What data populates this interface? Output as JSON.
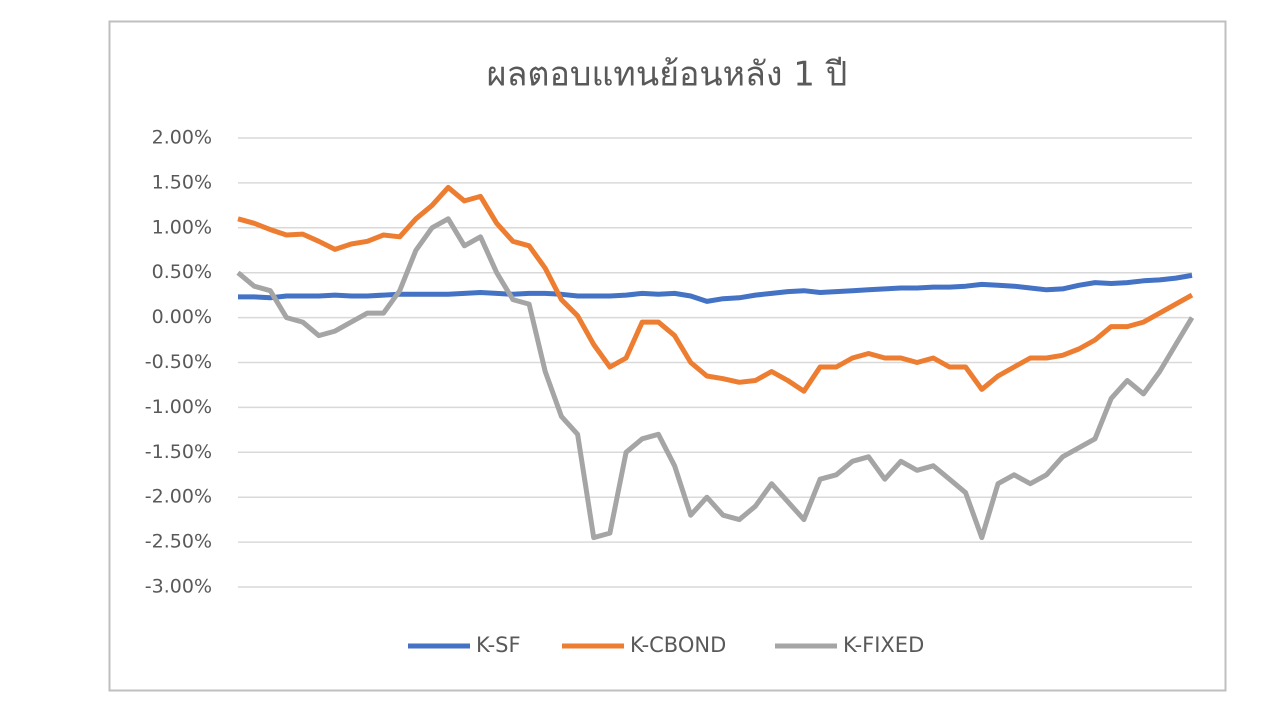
{
  "chart_data": {
    "type": "line",
    "title": "ผลตอบแทนย้อนหลัง 1 ปี",
    "ylim": [
      -3,
      2
    ],
    "yticks": [
      {
        "value": 2,
        "label": "2.00%"
      },
      {
        "value": 1.5,
        "label": "1.50%"
      },
      {
        "value": 1,
        "label": "1.00%"
      },
      {
        "value": 0.5,
        "label": "0.50%"
      },
      {
        "value": 0,
        "label": "0.00%"
      },
      {
        "value": -0.5,
        "label": "-0.50%"
      },
      {
        "value": -1,
        "label": "-1.00%"
      },
      {
        "value": -1.5,
        "label": "-1.50%"
      },
      {
        "value": -2,
        "label": "-2.00%"
      },
      {
        "value": -2.5,
        "label": "-2.50%"
      },
      {
        "value": -3,
        "label": "-3.00%"
      }
    ],
    "grid": true,
    "legend": "bottom",
    "series": [
      {
        "name": "K-SF",
        "color": "#4472c4",
        "values": [
          0.23,
          0.23,
          0.22,
          0.24,
          0.24,
          0.24,
          0.25,
          0.24,
          0.24,
          0.25,
          0.26,
          0.26,
          0.26,
          0.26,
          0.27,
          0.28,
          0.27,
          0.26,
          0.27,
          0.27,
          0.26,
          0.24,
          0.24,
          0.24,
          0.25,
          0.27,
          0.26,
          0.27,
          0.24,
          0.18,
          0.21,
          0.22,
          0.25,
          0.27,
          0.29,
          0.3,
          0.28,
          0.29,
          0.3,
          0.31,
          0.32,
          0.33,
          0.33,
          0.34,
          0.34,
          0.35,
          0.37,
          0.36,
          0.35,
          0.33,
          0.31,
          0.32,
          0.36,
          0.39,
          0.38,
          0.39,
          0.41,
          0.42,
          0.44,
          0.47
        ]
      },
      {
        "name": "K-CBOND",
        "color": "#ed7d31",
        "values": [
          1.1,
          1.05,
          0.98,
          0.92,
          0.93,
          0.85,
          0.76,
          0.82,
          0.85,
          0.92,
          0.9,
          1.1,
          1.25,
          1.45,
          1.3,
          1.35,
          1.05,
          0.85,
          0.8,
          0.55,
          0.2,
          0.02,
          -0.3,
          -0.55,
          -0.45,
          -0.05,
          -0.05,
          -0.2,
          -0.5,
          -0.65,
          -0.68,
          -0.72,
          -0.7,
          -0.6,
          -0.7,
          -0.82,
          -0.55,
          -0.55,
          -0.45,
          -0.4,
          -0.45,
          -0.45,
          -0.5,
          -0.45,
          -0.55,
          -0.55,
          -0.8,
          -0.65,
          -0.55,
          -0.45,
          -0.45,
          -0.42,
          -0.35,
          -0.25,
          -0.1,
          -0.1,
          -0.05,
          0.05,
          0.15,
          0.25
        ]
      },
      {
        "name": "K-FIXED",
        "color": "#a5a5a5",
        "values": [
          0.5,
          0.35,
          0.3,
          0.0,
          -0.05,
          -0.2,
          -0.15,
          -0.05,
          0.05,
          0.05,
          0.3,
          0.75,
          1.0,
          1.1,
          0.8,
          0.9,
          0.5,
          0.2,
          0.15,
          -0.6,
          -1.1,
          -1.3,
          -2.45,
          -2.4,
          -1.5,
          -1.35,
          -1.3,
          -1.65,
          -2.2,
          -2.0,
          -2.2,
          -2.25,
          -2.1,
          -1.85,
          -2.05,
          -2.25,
          -1.8,
          -1.75,
          -1.6,
          -1.55,
          -1.8,
          -1.6,
          -1.7,
          -1.65,
          -1.8,
          -1.95,
          -2.45,
          -1.85,
          -1.75,
          -1.85,
          -1.75,
          -1.55,
          -1.45,
          -1.35,
          -0.9,
          -0.7,
          -0.85,
          -0.6,
          -0.3,
          0.0
        ]
      }
    ]
  }
}
